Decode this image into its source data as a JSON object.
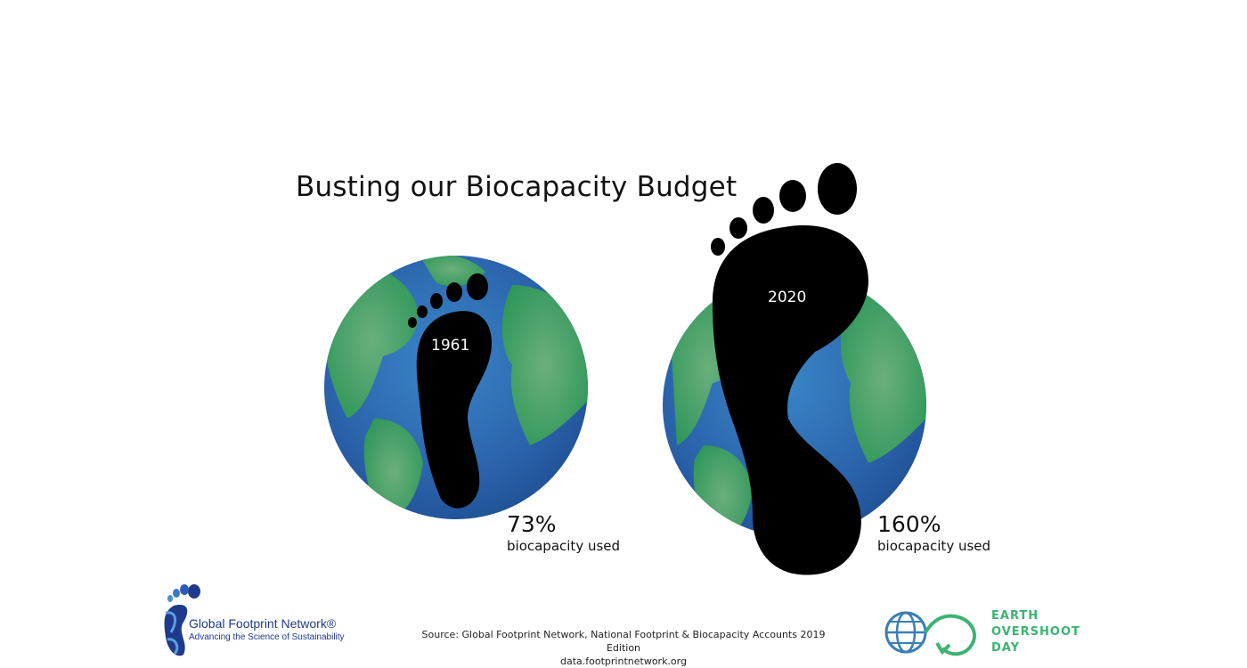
{
  "title": "Busting our Biocapacity Budget",
  "footprints": [
    {
      "year": "1961",
      "percent": "73%",
      "caption": "biocapacity used"
    },
    {
      "year": "2020",
      "percent": "160%",
      "caption": "biocapacity used"
    }
  ],
  "source": {
    "line1": "Source: Global Footprint Network, National Footprint & Biocapacity Accounts 2019 Edition",
    "line2": "data.footprintnetwork.org"
  },
  "logos": {
    "gfn": {
      "name": "Global Footprint Network®",
      "tagline": "Advancing the Science of Sustainability",
      "color": "#1f3a8a",
      "icon": "footprint-logo-icon"
    },
    "eod": {
      "lines": [
        "EARTH",
        "OVERSHOOT",
        "DAY"
      ],
      "color": "#3cb371",
      "icon": "globe-loop-logo-icon"
    }
  },
  "colors": {
    "ocean": "#2d6bb0",
    "land": "#45a55e",
    "footprint": "#000000"
  }
}
